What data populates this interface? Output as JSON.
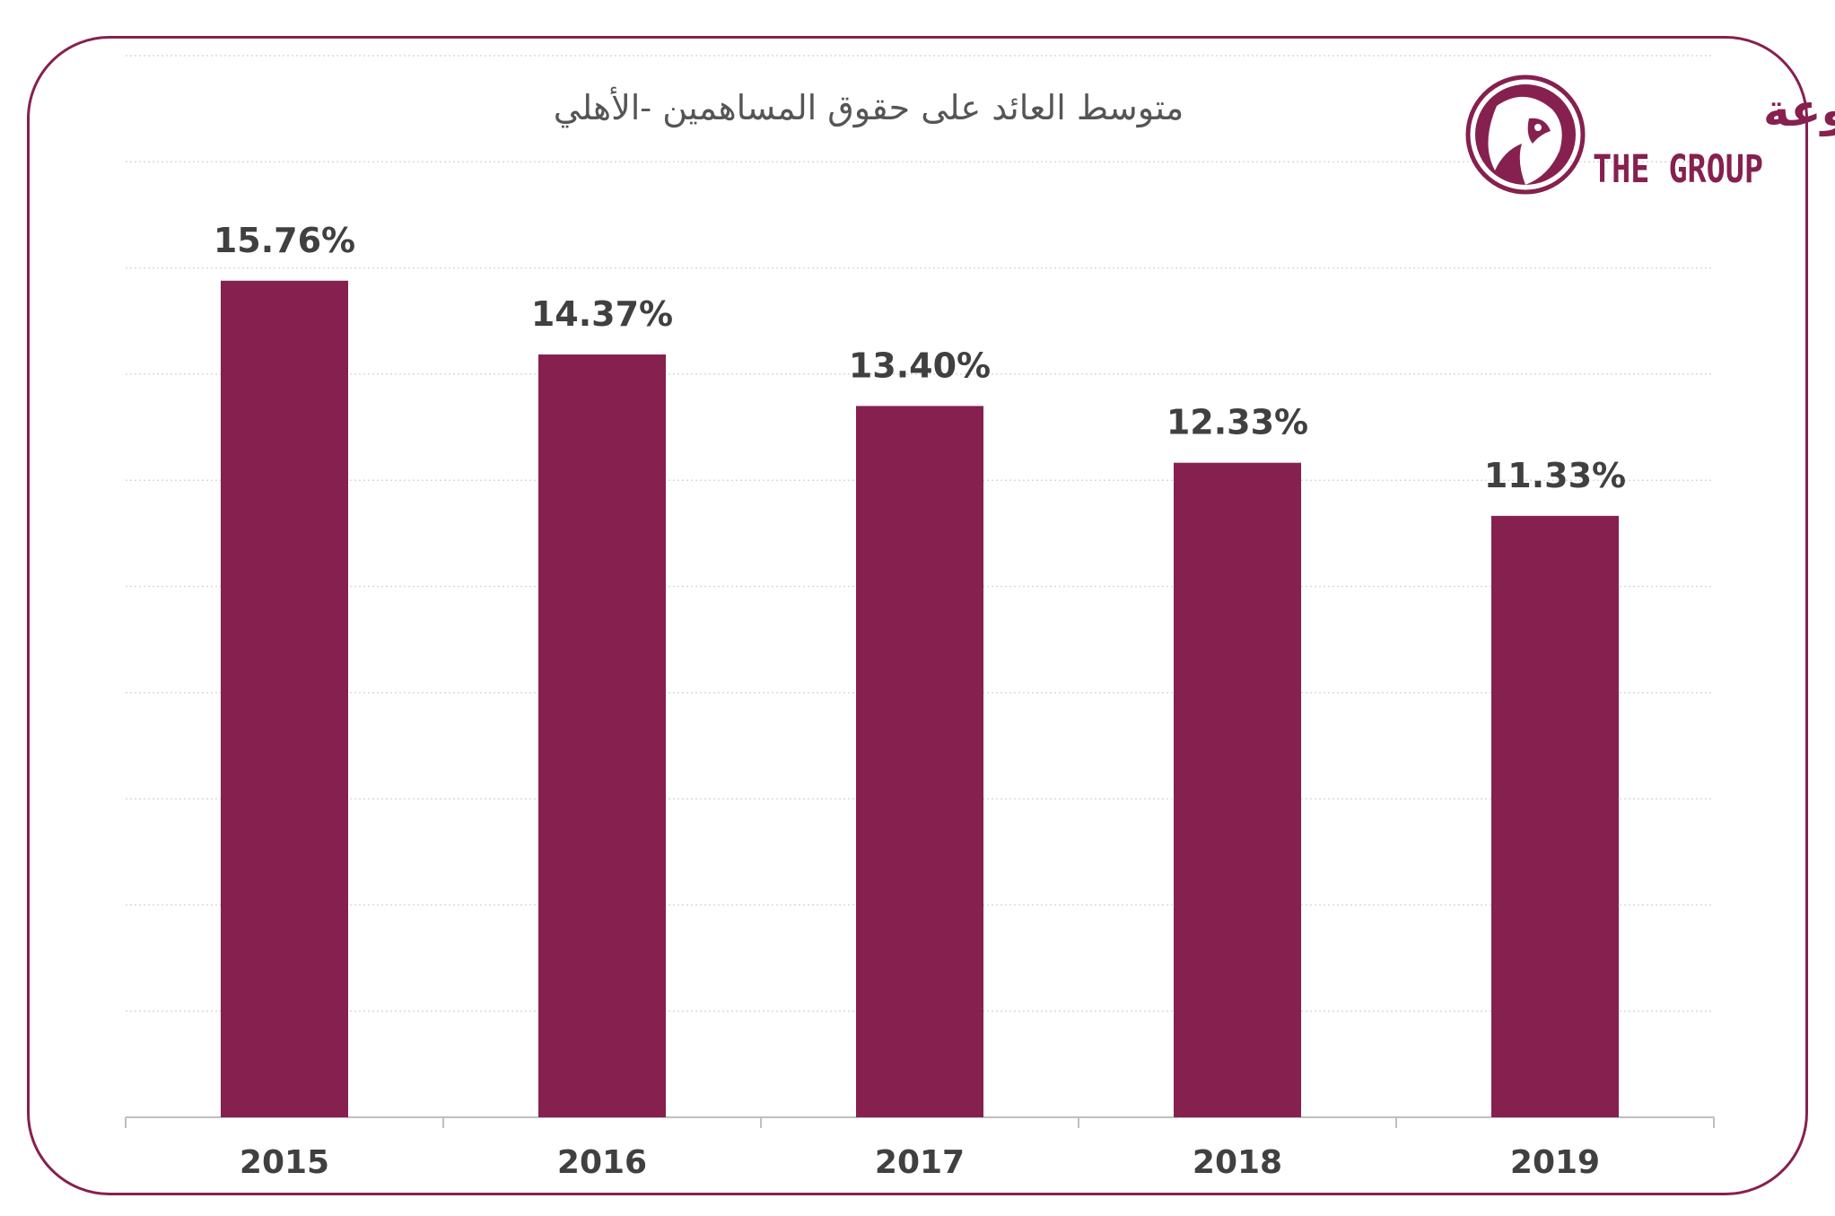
{
  "logo": {
    "arabic": "المجموعة",
    "english": "THE GROUP"
  },
  "colors": {
    "bar": "#86204f",
    "frame": "#86204f",
    "text": "#404040",
    "grid": "#d9d9d9",
    "axis": "#bfbfbf"
  },
  "chart_data": {
    "type": "bar",
    "title": "متوسط العائد على حقوق المساهمين -الأهلي",
    "categories": [
      "2015",
      "2016",
      "2017",
      "2018",
      "2019"
    ],
    "values": [
      15.76,
      14.37,
      13.4,
      12.33,
      11.33
    ],
    "value_labels": [
      "15.76%",
      "14.37%",
      "13.40%",
      "12.33%",
      "11.33%"
    ],
    "xlabel": "",
    "ylabel": "",
    "ylim": [
      0,
      20
    ],
    "grid": true,
    "legend": "none"
  }
}
